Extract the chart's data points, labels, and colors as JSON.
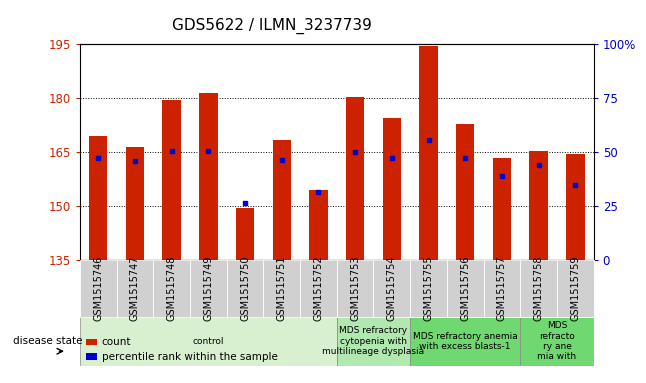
{
  "title": "GDS5622 / ILMN_3237739",
  "samples": [
    "GSM1515746",
    "GSM1515747",
    "GSM1515748",
    "GSM1515749",
    "GSM1515750",
    "GSM1515751",
    "GSM1515752",
    "GSM1515753",
    "GSM1515754",
    "GSM1515755",
    "GSM1515756",
    "GSM1515757",
    "GSM1515758",
    "GSM1515759"
  ],
  "bar_tops": [
    169.5,
    166.5,
    179.5,
    181.5,
    149.5,
    168.5,
    154.5,
    180.5,
    174.5,
    194.5,
    173.0,
    163.5,
    165.5,
    164.5
  ],
  "bar_base": 135,
  "blue_dots_left": [
    163.5,
    162.5,
    165.5,
    165.5,
    151.0,
    163.0,
    154.0,
    165.0,
    163.5,
    168.5,
    163.5,
    158.5,
    161.5,
    156.0
  ],
  "ylim_left": [
    135,
    195
  ],
  "ylim_right": [
    0,
    100
  ],
  "yticks_left": [
    135,
    150,
    165,
    180,
    195
  ],
  "yticks_right": [
    0,
    25,
    50,
    75,
    100
  ],
  "ytick_labels_right": [
    "0",
    "25",
    "50",
    "75",
    "100%"
  ],
  "bar_color": "#cc2200",
  "dot_color": "#0000cc",
  "group_data": [
    {
      "label": "control",
      "start": 0,
      "end": 7,
      "color": "#d8f0d0"
    },
    {
      "label": "MDS refractory\ncytopenia with\nmultilineage dysplasia",
      "start": 7,
      "end": 9,
      "color": "#b0e8b0"
    },
    {
      "label": "MDS refractory anemia\nwith excess blasts-1",
      "start": 9,
      "end": 12,
      "color": "#70d870"
    },
    {
      "label": "MDS\nrefracto\nry ane\nmia with",
      "start": 12,
      "end": 14,
      "color": "#70d870"
    }
  ],
  "disease_state_label": "disease state",
  "legend_count_label": "count",
  "legend_pct_label": "percentile rank within the sample",
  "title_fontsize": 11,
  "tick_fontsize": 8.5,
  "sample_fontsize": 7,
  "group_fontsize": 6.5
}
